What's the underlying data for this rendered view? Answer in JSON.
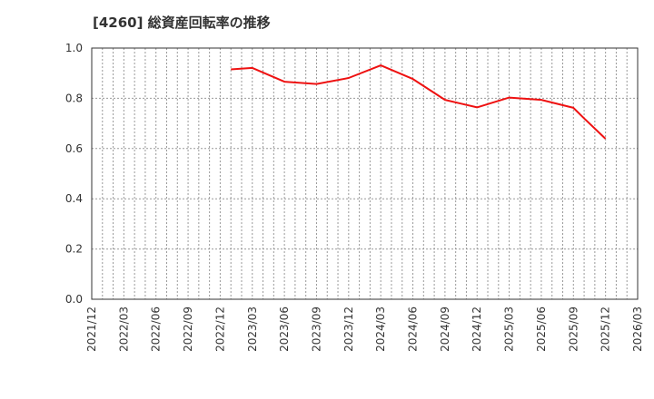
{
  "header": {
    "title": "[4260]  総資産回転率の推移"
  },
  "colors": {
    "line": "#ee1111",
    "grid": "#999999",
    "axis": "#333333",
    "background": "#ffffff"
  },
  "chart_data": {
    "type": "line",
    "title": "[4260]  総資産回転率の推移",
    "xlabel": "",
    "ylabel": "",
    "ylim": [
      0.0,
      1.0
    ],
    "yticks": [
      "0.0",
      "0.2",
      "0.4",
      "0.6",
      "0.8",
      "1.0"
    ],
    "xlim": [
      "2021/12",
      "2026/03"
    ],
    "xticks": [
      "2021/12",
      "2022/03",
      "2022/06",
      "2022/09",
      "2022/12",
      "2023/03",
      "2023/06",
      "2023/09",
      "2023/12",
      "2024/03",
      "2024/06",
      "2024/09",
      "2024/12",
      "2025/03",
      "2025/06",
      "2025/09",
      "2025/12",
      "2026/03"
    ],
    "grid": true,
    "legend": null,
    "series": [
      {
        "name": "総資産回転率",
        "color": "#ee1111",
        "x": [
          "2023/01",
          "2023/03",
          "2023/06",
          "2023/09",
          "2023/12",
          "2024/03",
          "2024/06",
          "2024/09",
          "2024/12",
          "2025/03",
          "2025/06",
          "2025/09",
          "2025/10",
          "2025/12"
        ],
        "values": [
          0.915,
          0.921,
          0.866,
          0.857,
          0.881,
          0.931,
          0.877,
          0.794,
          0.764,
          0.803,
          0.794,
          0.762,
          0.72,
          0.639
        ]
      }
    ]
  }
}
